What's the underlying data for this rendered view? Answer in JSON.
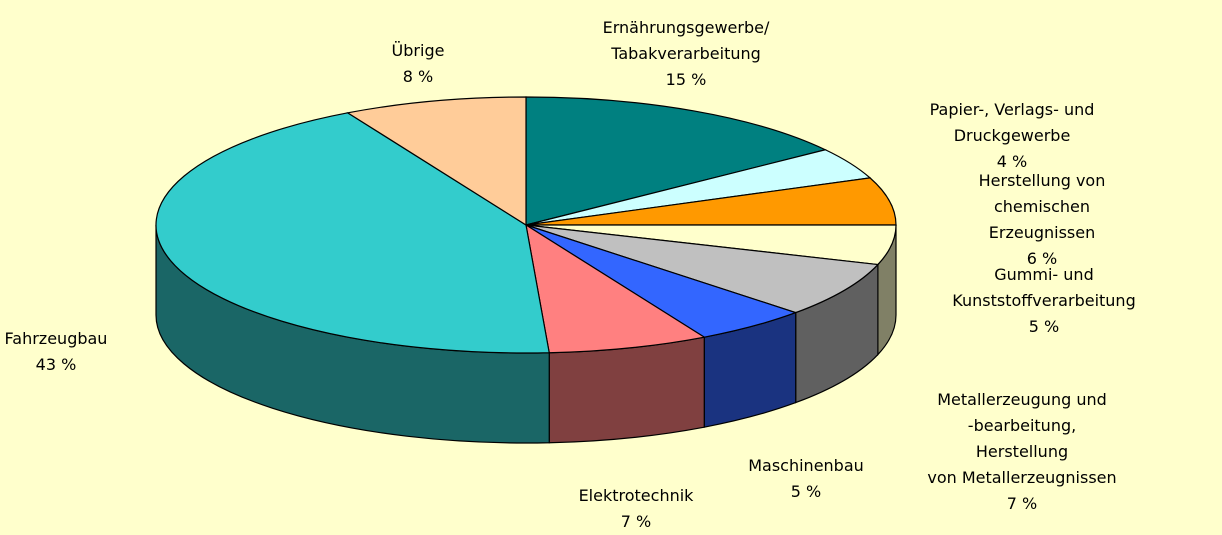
{
  "chart_data": {
    "type": "pie",
    "categories": [
      "Ernährungsgewerbe/\nTabakverarbeitung",
      "Papier-, Verlags- und Druckgewerbe",
      "Herstellung von chemischen\nErzeugnissen",
      "Gummi- und\nKunststoffverarbeitung",
      "Metallerzeugung und\n-bearbeitung, Herstellung\nvon Metallerzeugnissen",
      "Maschinenbau",
      "Elektrotechnik",
      "Fahrzeugbau",
      "Übrige"
    ],
    "values": [
      15,
      4,
      6,
      5,
      7,
      5,
      7,
      43,
      8
    ],
    "value_labels": [
      "15 %",
      "4 %",
      "6 %",
      "5 %",
      "7 %",
      "5 %",
      "7 %",
      "43 %",
      "8 %"
    ],
    "colors": [
      "#008080",
      "#ccffff",
      "#ff9900",
      "#ffffcc",
      "#c0c0c0",
      "#3366ff",
      "#ff8080",
      "#33cccc",
      "#ffcc99"
    ]
  }
}
